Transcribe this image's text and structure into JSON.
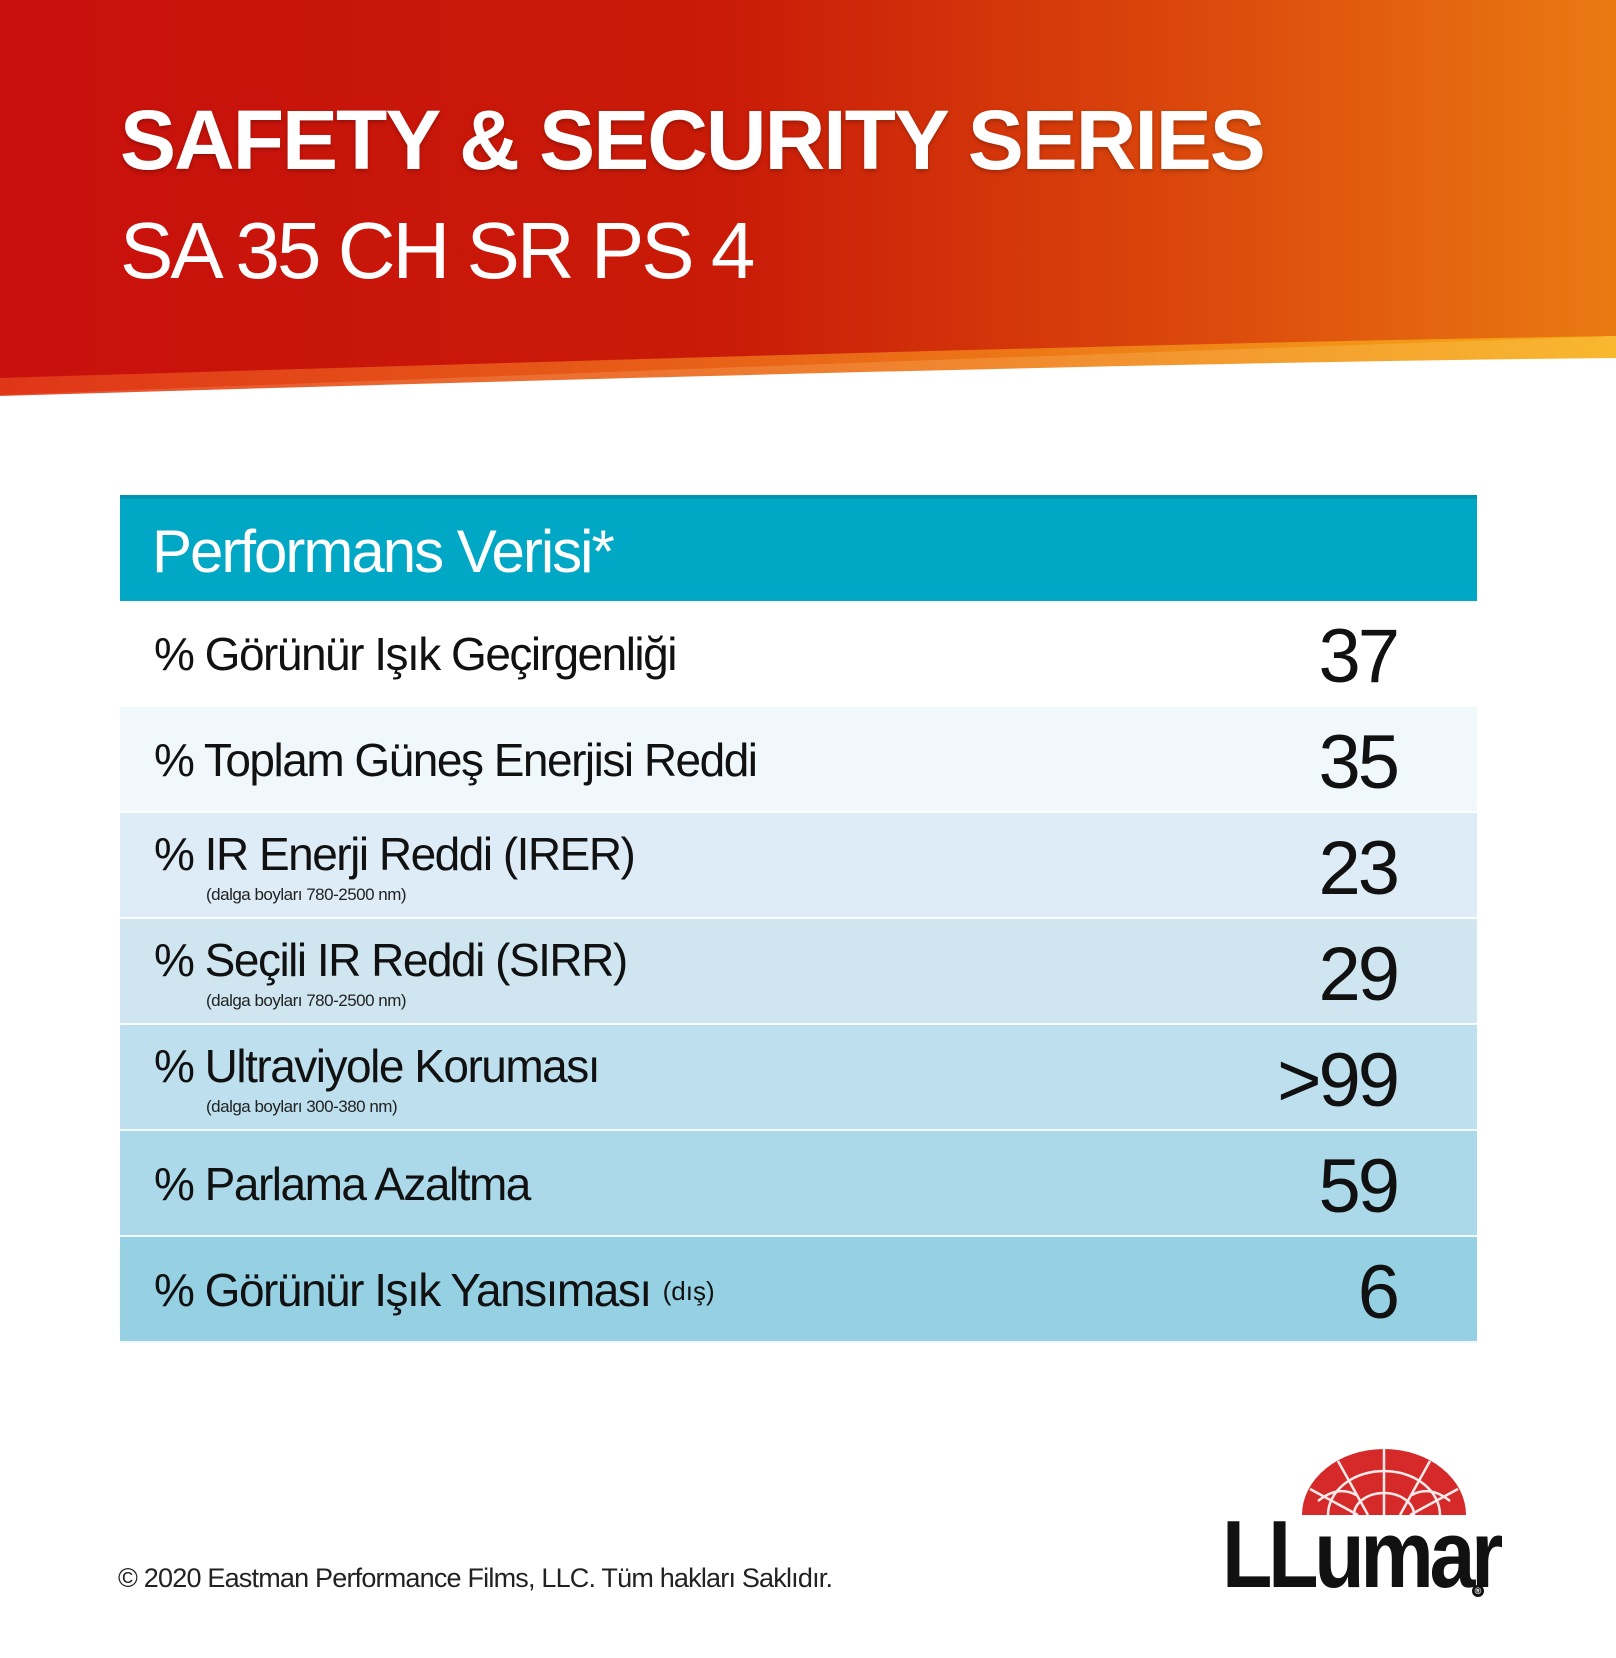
{
  "banner": {
    "title": "SAFETY & SECURITY SERIES",
    "subtitle": "SA 35 CH SR PS 4",
    "colors": {
      "red": "#c8100c",
      "orange": "#e66a10",
      "stripe": "#f7b018"
    }
  },
  "table": {
    "header": "Performans Verisi*",
    "header_color": "#00a8c6",
    "rows": [
      {
        "label": "% Görünür Işık Geçirgenliği",
        "note": "",
        "qualifier": "",
        "value": "37",
        "bg": "#ffffff"
      },
      {
        "label": "% Toplam Güneş Enerjisi Reddi",
        "note": "",
        "qualifier": "",
        "value": "35",
        "bg": "#f1f8fb"
      },
      {
        "label": "% IR Enerji Reddi (IRER)",
        "note": "(dalga boyları 780-2500 nm)",
        "qualifier": "",
        "value": "23",
        "bg": "#ddecf7"
      },
      {
        "label": "% Seçili IR Reddi (SIRR)",
        "note": "(dalga boyları 780-2500 nm)",
        "qualifier": "",
        "value": "29",
        "bg": "#cfe6f1"
      },
      {
        "label": "% Ultraviyole Koruması",
        "note": "(dalga boyları 300-380 nm)",
        "qualifier": "",
        "value": ">99",
        "bg": "#bee0ee"
      },
      {
        "label": "% Parlama Azaltma",
        "note": "",
        "qualifier": "",
        "value": "59",
        "bg": "#abd9e9"
      },
      {
        "label": "% Görünür Işık Yansıması",
        "note": "",
        "qualifier": "(dış)",
        "value": "6",
        "bg": "#95d0e3"
      }
    ]
  },
  "footer": {
    "copyright": "© 2020 Eastman Performance Films, LLC. Tüm hakları Saklıdır."
  },
  "logo": {
    "text": "LLumar",
    "mark_color": "#d62a2a"
  }
}
